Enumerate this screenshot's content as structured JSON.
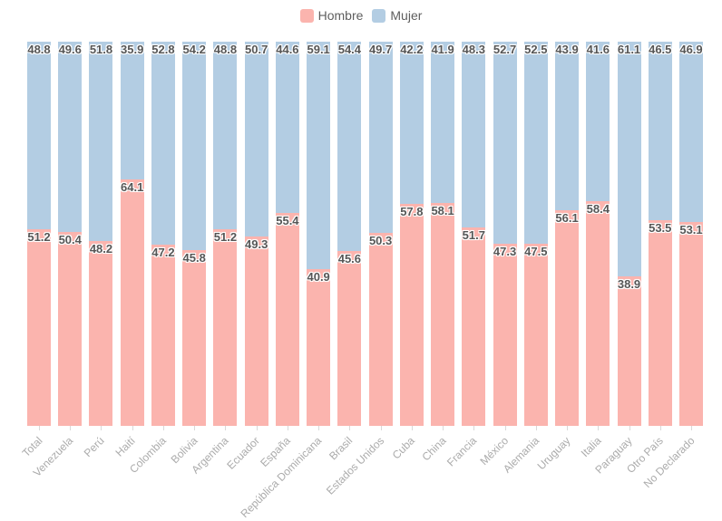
{
  "legend": {
    "items": [
      {
        "label": "Hombre",
        "color": "#fbb4ae"
      },
      {
        "label": "Mujer",
        "color": "#b3cde3"
      }
    ],
    "position": "top-center"
  },
  "chart_data": {
    "type": "bar",
    "stacked": true,
    "orientation": "vertical",
    "units": "percent",
    "title": "",
    "xlabel": "",
    "ylabel": "",
    "ylim": [
      0,
      100
    ],
    "grid": false,
    "y_axis_visible": false,
    "data_labels": true,
    "x_label_rotation_deg": 45,
    "legend_position": "top",
    "categories": [
      "Total",
      "Venezuela",
      "Perú",
      "Haití",
      "Colombia",
      "Bolivia",
      "Argentina",
      "Ecuador",
      "España",
      "República Dominicana",
      "Brasil",
      "Estados Unidos",
      "Cuba",
      "China",
      "Francia",
      "México",
      "Alemania",
      "Uruguay",
      "Italia",
      "Paraguay",
      "Otro País",
      "No Declarado"
    ],
    "series": [
      {
        "name": "Hombre",
        "color": "#fbb4ae",
        "values": [
          51.2,
          50.4,
          48.2,
          64.1,
          47.2,
          45.8,
          51.2,
          49.3,
          55.4,
          40.9,
          45.6,
          50.3,
          57.8,
          58.1,
          51.7,
          47.3,
          47.5,
          56.1,
          58.4,
          38.9,
          53.5,
          53.1
        ]
      },
      {
        "name": "Mujer",
        "color": "#b3cde3",
        "values": [
          48.8,
          49.6,
          51.8,
          35.9,
          52.8,
          54.2,
          48.8,
          50.7,
          44.6,
          59.1,
          54.4,
          49.7,
          42.2,
          41.9,
          48.3,
          52.7,
          52.5,
          43.9,
          41.6,
          61.1,
          46.5,
          46.9
        ]
      }
    ],
    "style": {
      "label_text_color": "#565656",
      "axis_label_color": "#ababab",
      "legend_text_color": "#5e5e5e",
      "tick_color": "#d9d9d9",
      "background": "#ffffff"
    }
  }
}
